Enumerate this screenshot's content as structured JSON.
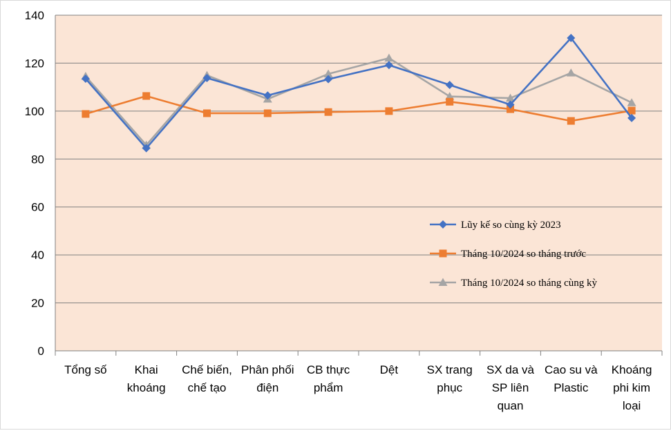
{
  "chart_data": {
    "type": "line",
    "title": "",
    "xlabel": "",
    "ylabel": "",
    "ylim": [
      0,
      140
    ],
    "y_ticks": [
      0,
      20,
      40,
      60,
      80,
      100,
      120,
      140
    ],
    "grid": true,
    "legend_position": "center-right",
    "plot_background": "#FBE5D6",
    "categories": [
      [
        "Tổng số"
      ],
      [
        "Khai",
        "khoáng"
      ],
      [
        "Chế biến,",
        "chế tạo"
      ],
      [
        "Phân phối",
        "điện"
      ],
      [
        "CB thực",
        "phẩm"
      ],
      [
        "Dệt"
      ],
      [
        "SX trang",
        "phục"
      ],
      [
        "SX da và",
        "SP liên",
        "quan"
      ],
      [
        "Cao su và",
        "Plastic"
      ],
      [
        "Khoáng",
        "phi kim",
        "loại"
      ]
    ],
    "series": [
      {
        "name": "Lũy kế so cùng kỳ 2023",
        "color": "#4472C4",
        "marker": "diamond",
        "values": [
          113.5,
          84.5,
          113.8,
          106.5,
          113.3,
          119.2,
          110.9,
          102.7,
          130.5,
          97.1
        ]
      },
      {
        "name": "Tháng 10/2024 so tháng trước",
        "color": "#ED7D31",
        "marker": "square",
        "values": [
          98.8,
          106.3,
          99.1,
          99.1,
          99.6,
          100.0,
          103.9,
          100.8,
          95.9,
          100.2
        ]
      },
      {
        "name": "Tháng 10/2024 so tháng cùng kỳ",
        "color": "#A5A5A5",
        "marker": "triangle",
        "values": [
          114.5,
          85.8,
          114.9,
          105.0,
          115.5,
          122.1,
          106.1,
          105.4,
          115.9,
          103.5
        ]
      }
    ]
  }
}
